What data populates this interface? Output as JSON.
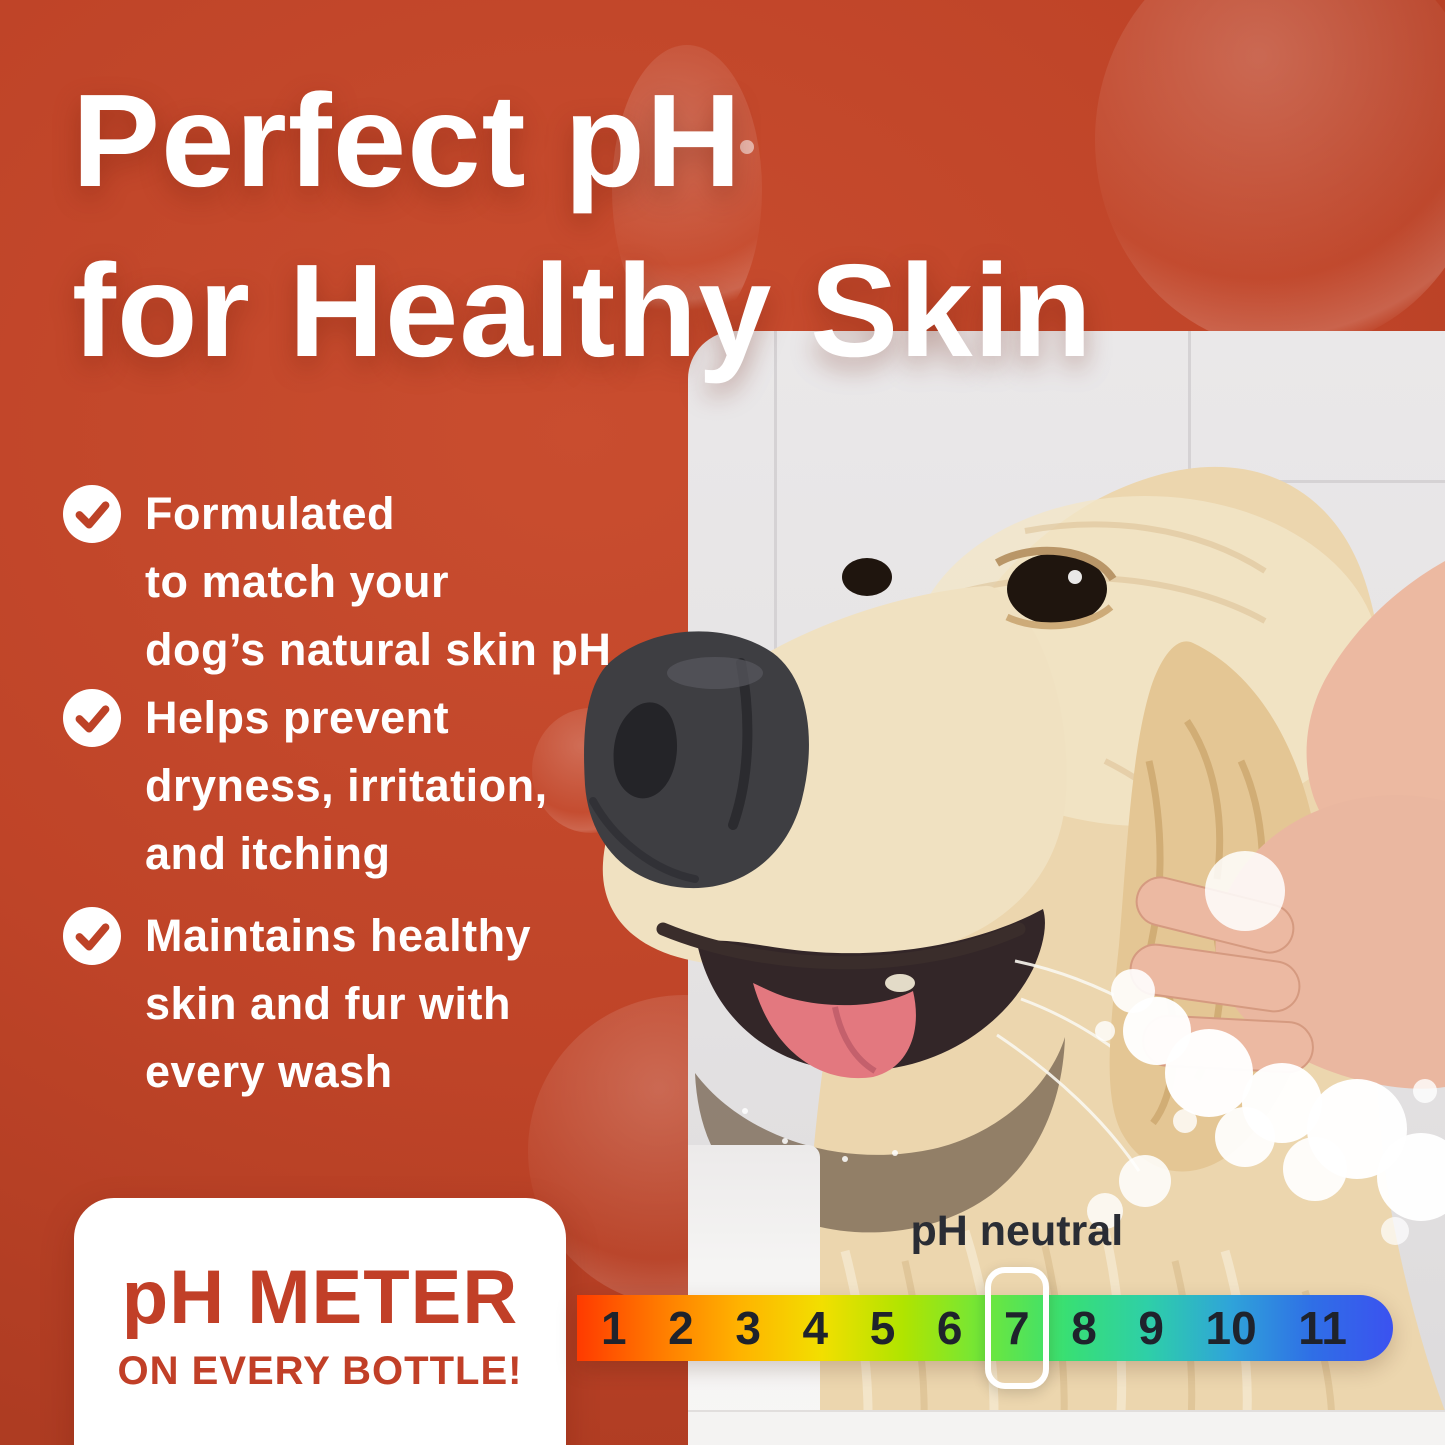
{
  "heading": {
    "line1": "Perfect pH",
    "line2": "for Healthy Skin",
    "color": "#ffffff"
  },
  "benefits": [
    {
      "icon": "check-icon",
      "lines": [
        "Formulated",
        "to match your",
        "dog’s natural skin pH"
      ]
    },
    {
      "icon": "check-icon",
      "lines": [
        "Helps prevent",
        "dryness, irritation,",
        "and itching"
      ]
    },
    {
      "icon": "check-icon",
      "lines": [
        "Maintains healthy",
        "skin and fur with",
        "every wash"
      ]
    }
  ],
  "badge": {
    "title": "pH METER",
    "subtitle": "ON EVERY BOTTLE!",
    "text_color": "#c13f27",
    "background": "#ffffff"
  },
  "ph_scale": {
    "label": "pH neutral",
    "values": [
      "1",
      "2",
      "3",
      "4",
      "5",
      "6",
      "7",
      "8",
      "9",
      "10",
      "11"
    ],
    "highlight_value": "7",
    "gradient": [
      "#ff3a00",
      "#ff7a00",
      "#ffb300",
      "#f2df00",
      "#b0e400",
      "#6ee73c",
      "#38df74",
      "#2ecfa8",
      "#2fa4d9",
      "#2f6fe6",
      "#3b52f0"
    ],
    "number_color": "#1f232c"
  },
  "photo": {
    "description": "Golden Retriever dog being washed by hands with soap suds in a white tiled bathroom"
  },
  "colors": {
    "background": "#bf4428",
    "check_circle": "#ffffff",
    "check_mark": "#bd4227"
  }
}
